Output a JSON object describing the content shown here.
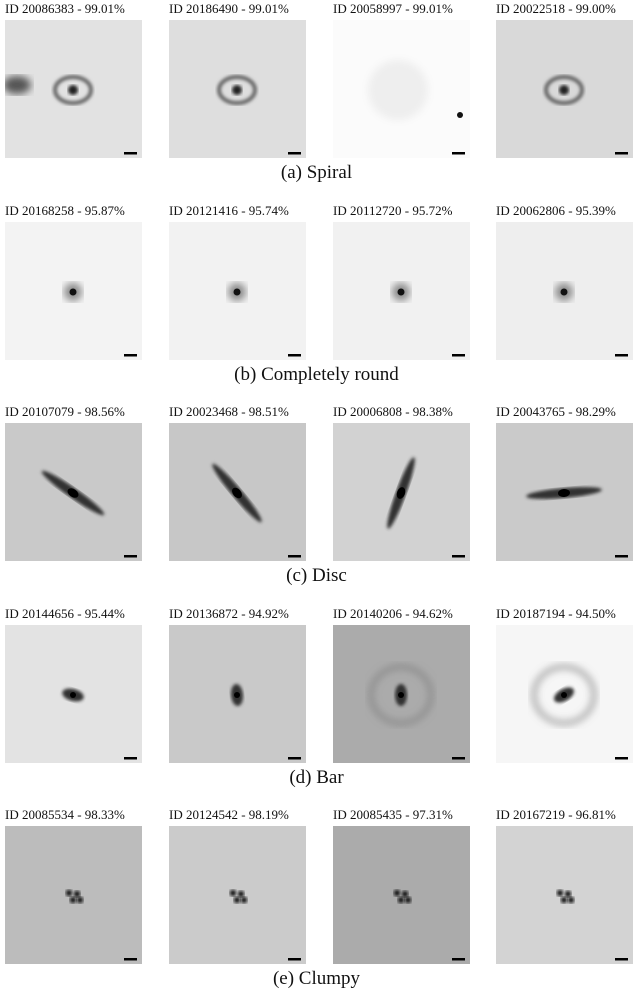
{
  "groups": [
    {
      "caption": "(a) Spiral",
      "items": [
        {
          "label": "ID 20086383 - 99.01%"
        },
        {
          "label": "ID 20186490 - 99.01%"
        },
        {
          "label": "ID 20058997 - 99.01%"
        },
        {
          "label": "ID 20022518 - 99.00%"
        }
      ]
    },
    {
      "caption": "(b) Completely round",
      "items": [
        {
          "label": "ID 20168258 - 95.87%"
        },
        {
          "label": "ID 20121416 - 95.74%"
        },
        {
          "label": "ID 20112720 - 95.72%"
        },
        {
          "label": "ID 20062806 - 95.39%"
        }
      ]
    },
    {
      "caption": "(c) Disc",
      "items": [
        {
          "label": "ID 20107079 - 98.56%"
        },
        {
          "label": "ID 20023468 - 98.51%"
        },
        {
          "label": "ID 20006808 - 98.38%"
        },
        {
          "label": "ID 20043765 - 98.29%"
        }
      ]
    },
    {
      "caption": "(d) Bar",
      "items": [
        {
          "label": "ID 20144656 - 95.44%"
        },
        {
          "label": "ID 20136872 - 94.92%"
        },
        {
          "label": "ID 20140206 - 94.62%"
        },
        {
          "label": "ID 20187194 - 94.50%"
        }
      ]
    },
    {
      "caption": "(e) Clumpy",
      "items": [
        {
          "label": "ID 20085534 - 98.33%"
        },
        {
          "label": "ID 20124542 - 98.19%"
        },
        {
          "label": "ID 20085435 - 97.31%"
        },
        {
          "label": "ID 20167219 - 96.81%"
        }
      ]
    }
  ]
}
